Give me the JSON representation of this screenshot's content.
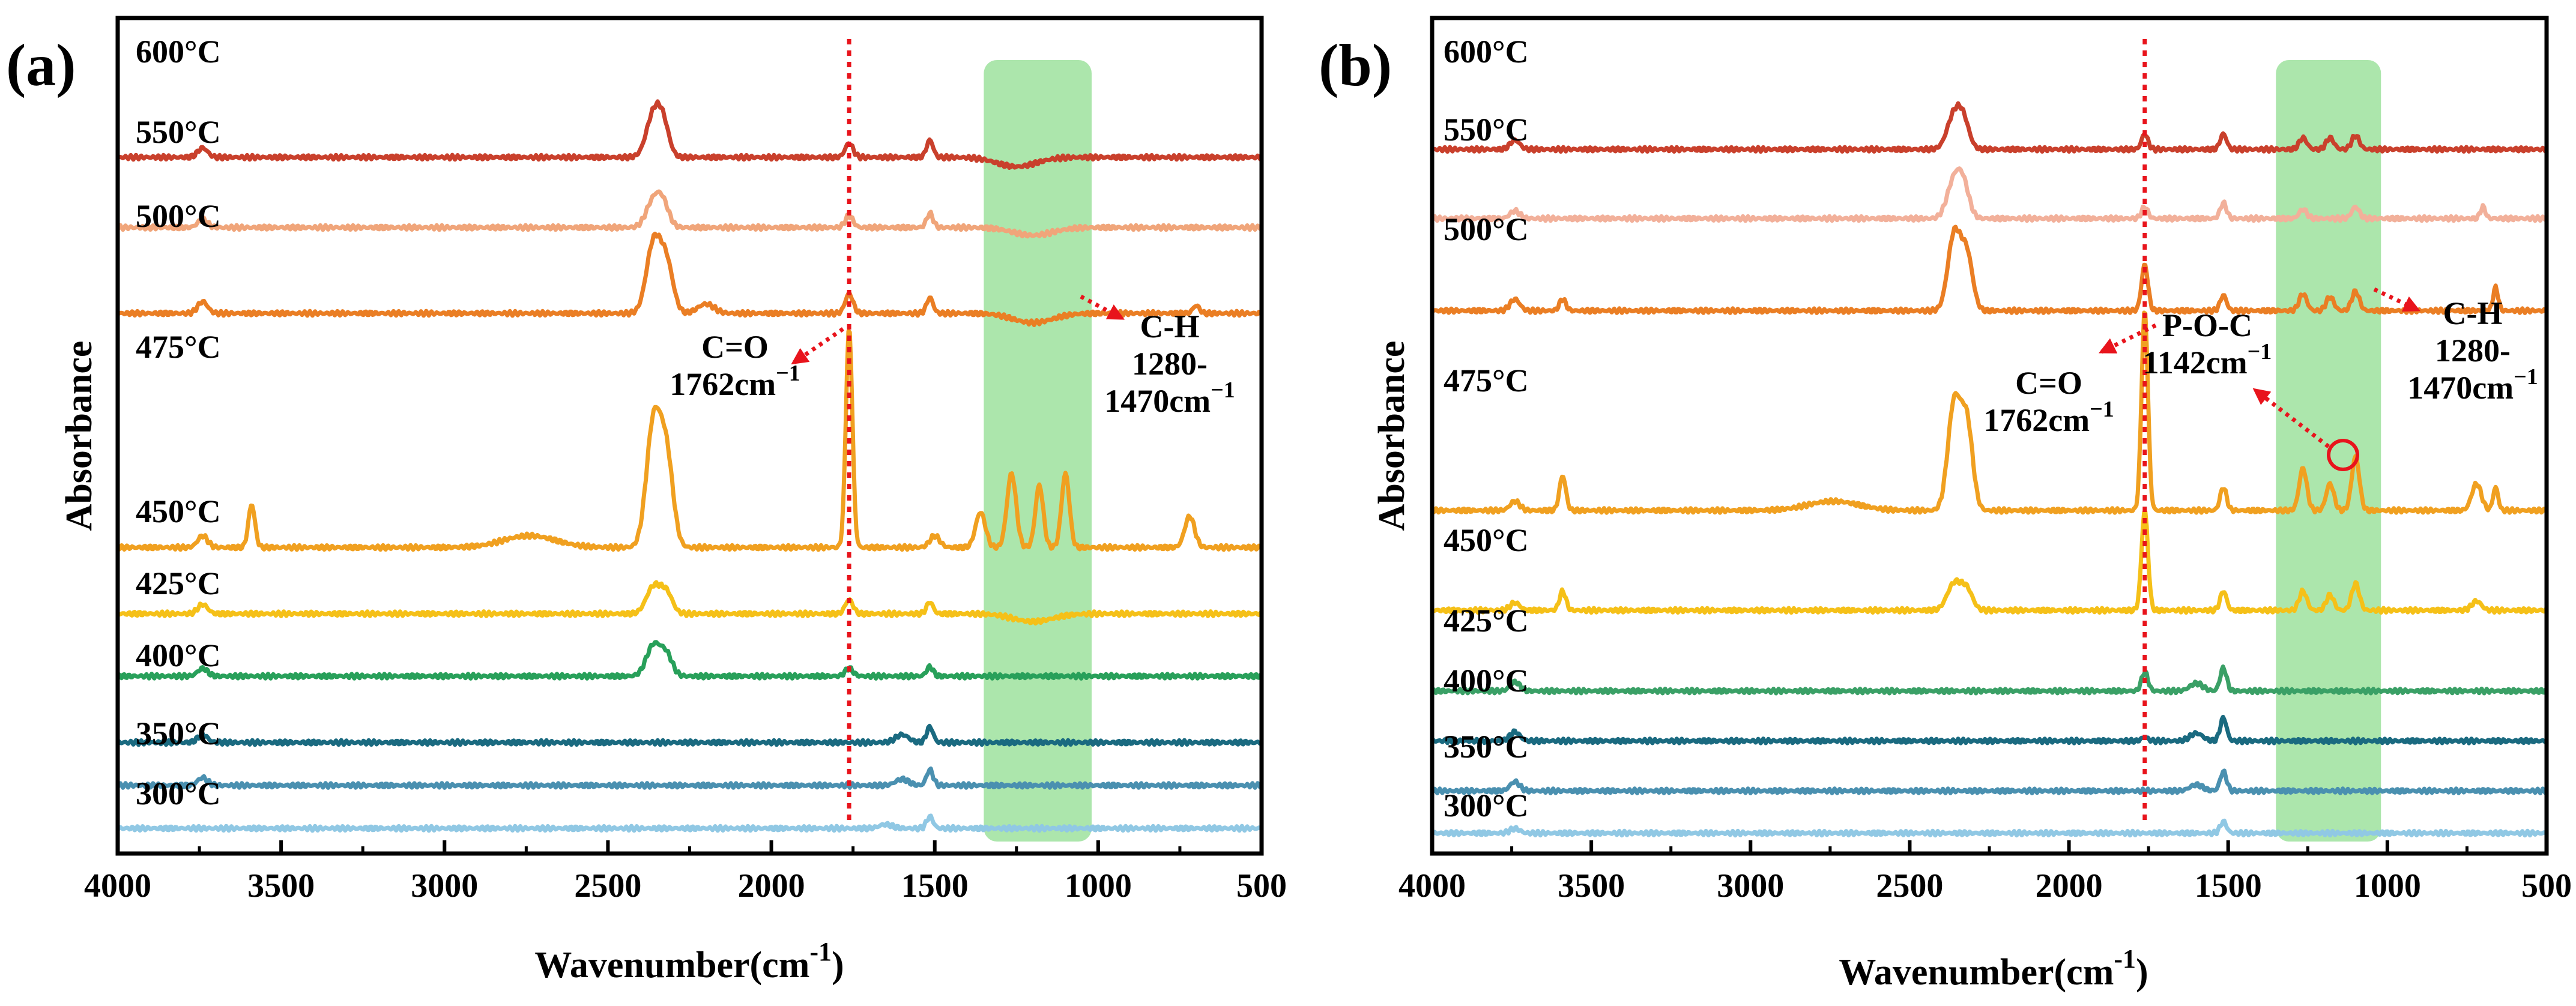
{
  "figure_title": "",
  "chart_data": [
    {
      "panel_label": "(a)",
      "type": "line",
      "xlabel": "Wavenumber(cm",
      "xlabel_superscript": "-1",
      "xlabel_close": ")",
      "ylabel": "Absorbance",
      "xlim": [
        4000,
        500
      ],
      "x_ticks": [
        "4000",
        "3500",
        "3000",
        "2500",
        "2000",
        "1500",
        "1000",
        "500"
      ],
      "reference_line": {
        "x": 1762,
        "color": "#e8141c"
      },
      "highlight_band": {
        "from": 1350,
        "to": 1020,
        "color": "#7fd87f"
      },
      "series": [
        {
          "name": "600°C",
          "color": "#c9402c",
          "offset": 8.6,
          "peaks": [
            [
              3740,
              0.12,
              15
            ],
            [
              2360,
              0.55,
              22
            ],
            [
              2330,
              0.35,
              18
            ],
            [
              1762,
              0.18,
              12
            ],
            [
              1515,
              0.22,
              10
            ],
            [
              1250,
              -0.12,
              60
            ]
          ]
        },
        {
          "name": "550°C",
          "color": "#f0a57a",
          "offset": 7.7,
          "peaks": [
            [
              3740,
              0.1,
              15
            ],
            [
              2360,
              0.35,
              22
            ],
            [
              2330,
              0.25,
              18
            ],
            [
              1762,
              0.15,
              12
            ],
            [
              1515,
              0.18,
              10
            ],
            [
              1200,
              -0.1,
              60
            ]
          ]
        },
        {
          "name": "500°C",
          "color": "#ea7e24",
          "offset": 6.6,
          "peaks": [
            [
              3740,
              0.15,
              15
            ],
            [
              2360,
              0.9,
              22
            ],
            [
              2320,
              0.6,
              20
            ],
            [
              2200,
              0.12,
              25
            ],
            [
              1762,
              0.25,
              12
            ],
            [
              1515,
              0.2,
              10
            ],
            [
              1200,
              -0.12,
              60
            ],
            [
              700,
              0.1,
              10
            ]
          ]
        },
        {
          "name": "475°C",
          "color": "#f0a020",
          "offset": 3.6,
          "peaks": [
            [
              3740,
              0.15,
              15
            ],
            [
              3590,
              0.55,
              10
            ],
            [
              2740,
              0.15,
              80
            ],
            [
              2360,
              1.6,
              22
            ],
            [
              2320,
              1.1,
              20
            ],
            [
              1762,
              2.8,
              10
            ],
            [
              1500,
              0.15,
              15
            ],
            [
              1360,
              0.45,
              15
            ],
            [
              1265,
              0.95,
              14
            ],
            [
              1180,
              0.8,
              12
            ],
            [
              1100,
              0.95,
              12
            ],
            [
              720,
              0.4,
              15
            ]
          ]
        },
        {
          "name": "450°C",
          "color": "#f5c018",
          "offset": 2.75,
          "peaks": [
            [
              3740,
              0.12,
              15
            ],
            [
              2360,
              0.35,
              22
            ],
            [
              2320,
              0.25,
              18
            ],
            [
              1762,
              0.18,
              12
            ],
            [
              1515,
              0.15,
              10
            ],
            [
              1200,
              -0.1,
              60
            ]
          ]
        },
        {
          "name": "425°C",
          "color": "#28a05a",
          "offset": 1.95,
          "peaks": [
            [
              3740,
              0.1,
              15
            ],
            [
              2360,
              0.4,
              22
            ],
            [
              2320,
              0.25,
              18
            ],
            [
              1762,
              0.1,
              12
            ],
            [
              1515,
              0.12,
              10
            ]
          ]
        },
        {
          "name": "400°C",
          "color": "#1a6a80",
          "offset": 1.1,
          "peaks": [
            [
              3740,
              0.1,
              15
            ],
            [
              1515,
              0.2,
              10
            ],
            [
              1600,
              0.1,
              20
            ]
          ]
        },
        {
          "name": "350°C",
          "color": "#4a90b0",
          "offset": 0.55,
          "peaks": [
            [
              3740,
              0.1,
              15
            ],
            [
              1515,
              0.2,
              10
            ],
            [
              1600,
              0.08,
              20
            ]
          ]
        },
        {
          "name": "300°C",
          "color": "#90c8e4",
          "offset": 0.0,
          "peaks": [
            [
              1515,
              0.15,
              10
            ],
            [
              1650,
              0.05,
              20
            ]
          ]
        }
      ],
      "annotations": [
        {
          "text": "C=O",
          "line2": "1762cm",
          "sup": "−1"
        },
        {
          "text": "C-H",
          "line2": "1280-",
          "line3": "1470cm",
          "sup": "−1"
        }
      ]
    },
    {
      "panel_label": "(b)",
      "type": "line",
      "xlabel": "Wavenumber(cm",
      "xlabel_superscript": "-1",
      "xlabel_close": ")",
      "ylabel": "Absorbance",
      "xlim": [
        4000,
        500
      ],
      "x_ticks": [
        "4000",
        "3500",
        "3000",
        "2500",
        "2000",
        "1500",
        "1000",
        "500"
      ],
      "reference_line": {
        "x": 1762,
        "color": "#e8141c"
      },
      "highlight_band": {
        "from": 1350,
        "to": 1020,
        "color": "#7fd87f"
      },
      "series": [
        {
          "name": "600°C",
          "color": "#c9402c",
          "offset": 8.9,
          "peaks": [
            [
              3740,
              0.12,
              15
            ],
            [
              2360,
              0.45,
              22
            ],
            [
              2330,
              0.3,
              18
            ],
            [
              1762,
              0.2,
              10
            ],
            [
              1515,
              0.2,
              10
            ],
            [
              1265,
              0.15,
              12
            ],
            [
              1180,
              0.15,
              12
            ],
            [
              1100,
              0.18,
              12
            ]
          ]
        },
        {
          "name": "550°C",
          "color": "#f2b09a",
          "offset": 8.0,
          "peaks": [
            [
              3740,
              0.1,
              15
            ],
            [
              2360,
              0.5,
              22
            ],
            [
              2330,
              0.35,
              18
            ],
            [
              1762,
              0.15,
              10
            ],
            [
              1515,
              0.2,
              10
            ],
            [
              1265,
              0.12,
              12
            ],
            [
              1100,
              0.15,
              12
            ],
            [
              700,
              0.15,
              8
            ]
          ]
        },
        {
          "name": "500°C",
          "color": "#ea7e24",
          "offset": 6.8,
          "peaks": [
            [
              3740,
              0.15,
              15
            ],
            [
              3590,
              0.15,
              10
            ],
            [
              2360,
              1.0,
              20
            ],
            [
              2320,
              0.7,
              18
            ],
            [
              1762,
              0.6,
              10
            ],
            [
              1515,
              0.2,
              10
            ],
            [
              1265,
              0.22,
              12
            ],
            [
              1180,
              0.18,
              12
            ],
            [
              1100,
              0.25,
              12
            ],
            [
              660,
              0.3,
              8
            ]
          ]
        },
        {
          "name": "475°C",
          "color": "#f0a020",
          "offset": 4.2,
          "peaks": [
            [
              3740,
              0.12,
              15
            ],
            [
              3590,
              0.45,
              10
            ],
            [
              2740,
              0.12,
              80
            ],
            [
              2360,
              1.4,
              20
            ],
            [
              2320,
              1.1,
              18
            ],
            [
              1762,
              2.6,
              10
            ],
            [
              1515,
              0.3,
              10
            ],
            [
              1265,
              0.55,
              12
            ],
            [
              1180,
              0.35,
              12
            ],
            [
              1100,
              0.7,
              12
            ],
            [
              720,
              0.35,
              15
            ],
            [
              660,
              0.3,
              8
            ]
          ]
        },
        {
          "name": "450°C",
          "color": "#f5c018",
          "offset": 2.9,
          "peaks": [
            [
              3740,
              0.1,
              15
            ],
            [
              3590,
              0.25,
              10
            ],
            [
              2360,
              0.35,
              22
            ],
            [
              2320,
              0.25,
              18
            ],
            [
              1762,
              1.3,
              10
            ],
            [
              1515,
              0.25,
              10
            ],
            [
              1265,
              0.25,
              12
            ],
            [
              1180,
              0.2,
              12
            ],
            [
              1100,
              0.35,
              12
            ],
            [
              720,
              0.12,
              15
            ]
          ]
        },
        {
          "name": "425°C",
          "color": "#3aa066",
          "offset": 1.85,
          "peaks": [
            [
              3740,
              0.12,
              15
            ],
            [
              1762,
              0.25,
              10
            ],
            [
              1515,
              0.3,
              10
            ],
            [
              1600,
              0.1,
              20
            ]
          ]
        },
        {
          "name": "400°C",
          "color": "#1a6a80",
          "offset": 1.2,
          "peaks": [
            [
              3740,
              0.12,
              15
            ],
            [
              1515,
              0.3,
              10
            ],
            [
              1600,
              0.1,
              20
            ],
            [
              1762,
              0.05,
              10
            ]
          ]
        },
        {
          "name": "350°C",
          "color": "#4a90b0",
          "offset": 0.55,
          "peaks": [
            [
              3740,
              0.12,
              15
            ],
            [
              1515,
              0.25,
              10
            ],
            [
              1600,
              0.08,
              20
            ]
          ]
        },
        {
          "name": "300°C",
          "color": "#90c8e4",
          "offset": 0.0,
          "peaks": [
            [
              3740,
              0.06,
              15
            ],
            [
              1515,
              0.15,
              10
            ]
          ]
        }
      ],
      "annotations": [
        {
          "text": "C=O",
          "line2": "1762cm",
          "sup": "−1"
        },
        {
          "text": "P-O-C",
          "line2": "1142cm",
          "sup": "−1"
        },
        {
          "text": "C-H",
          "line2": "1280-",
          "line3": "1470cm",
          "sup": "−1"
        }
      ]
    }
  ]
}
